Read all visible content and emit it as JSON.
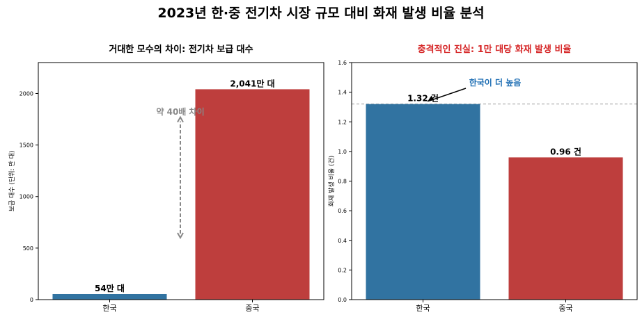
{
  "suptitle": "2023년 한·중 전기차 시장 규모 대비 화재 발생 비율 분석",
  "colors": {
    "blue": "#3173a1",
    "red": "#be3e3d",
    "red_title": "#d62728",
    "gray_annot": "#888888",
    "annot_blue": "#1f6fb4"
  },
  "chart_data": [
    {
      "type": "bar",
      "title": "거대한 모수의 차이: 전기차 보급 대수",
      "categories": [
        "한국",
        "중국"
      ],
      "values": [
        54,
        2041
      ],
      "value_labels": [
        "54만 대",
        "2,041만 대"
      ],
      "xlabel": "",
      "ylabel": "보급 대수 (단위: 만 대)",
      "ylim": [
        0,
        2300
      ],
      "yticks": [
        0,
        500,
        1000,
        1500,
        2000
      ],
      "ytick_labels": [
        "0",
        "500",
        "1000",
        "1500",
        "2000"
      ],
      "annotation": {
        "text": "약 40배 차이",
        "arrow_from": 600,
        "arrow_to": 1770
      }
    },
    {
      "type": "bar",
      "title": "충격적인 진실: 1만 대당 화재 발생 비율",
      "categories": [
        "한국",
        "중국"
      ],
      "values": [
        1.32,
        0.96
      ],
      "value_labels": [
        "1.32 건",
        "0.96 건"
      ],
      "xlabel": "",
      "ylabel": "화재 발생 비율 (건)",
      "ylim": [
        0,
        1.6
      ],
      "yticks": [
        0,
        0.2,
        0.4,
        0.6,
        0.8,
        1.0,
        1.2,
        1.4,
        1.6
      ],
      "ytick_labels": [
        "0.0",
        "0.2",
        "0.4",
        "0.6",
        "0.8",
        "1.0",
        "1.2",
        "1.4",
        "1.6"
      ],
      "reference_line": 1.32,
      "annotation": {
        "text": "한국이 더 높음",
        "target": 1.32
      }
    }
  ]
}
